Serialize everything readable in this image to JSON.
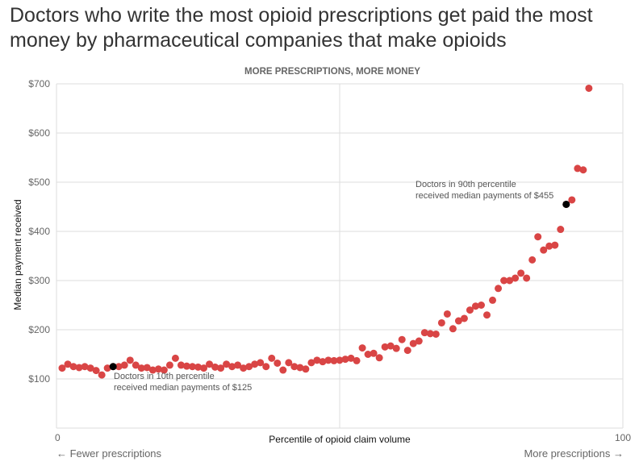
{
  "headline": "Doctors who write the most opioid prescriptions get paid the most money by pharmaceutical companies that make opioids",
  "chart_data": {
    "type": "scatter",
    "title": "MORE PRESCRIPTIONS, MORE MONEY",
    "xlabel": "Percentile of opioid claim volume",
    "ylabel": "Median payment received",
    "xlim": [
      0,
      100
    ],
    "ylim": [
      0,
      700
    ],
    "x_ticks": [
      "0",
      "100"
    ],
    "y_ticks": [
      "$100",
      "$200",
      "$300",
      "$400",
      "$500",
      "$600",
      "$700"
    ],
    "x_tick_values": [
      0,
      100
    ],
    "y_tick_values": [
      100,
      200,
      300,
      400,
      500,
      600,
      700
    ],
    "x_left_note": "← Fewer prescriptions",
    "x_right_note": "More prescriptions →",
    "grid": true,
    "series_color": "#d94545",
    "highlight_color": "#000000",
    "x": [
      1,
      2,
      3,
      4,
      5,
      6,
      7,
      8,
      9,
      10,
      11,
      12,
      13,
      14,
      15,
      16,
      17,
      18,
      19,
      20,
      21,
      22,
      23,
      24,
      25,
      26,
      27,
      28,
      29,
      30,
      31,
      32,
      33,
      34,
      35,
      36,
      37,
      38,
      39,
      40,
      41,
      42,
      43,
      44,
      45,
      46,
      47,
      48,
      49,
      50,
      51,
      52,
      53,
      54,
      55,
      56,
      57,
      58,
      59,
      60,
      61,
      62,
      63,
      64,
      65,
      66,
      67,
      68,
      69,
      70,
      71,
      72,
      73,
      74,
      75,
      76,
      77,
      78,
      79,
      80,
      81,
      82,
      83,
      84,
      85,
      86,
      87,
      88,
      89,
      90,
      91,
      92,
      93,
      94
    ],
    "y": [
      122,
      130,
      125,
      123,
      125,
      122,
      117,
      108,
      122,
      125,
      125,
      128,
      138,
      128,
      122,
      123,
      118,
      120,
      118,
      128,
      142,
      128,
      126,
      125,
      124,
      122,
      130,
      124,
      122,
      130,
      125,
      128,
      122,
      125,
      130,
      133,
      125,
      142,
      132,
      118,
      133,
      125,
      123,
      120,
      133,
      138,
      135,
      138,
      137,
      138,
      140,
      142,
      137,
      163,
      150,
      152,
      143,
      165,
      167,
      162,
      180,
      158,
      172,
      177,
      194,
      192,
      191,
      214,
      232,
      202,
      218,
      223,
      240,
      248,
      250,
      230,
      260,
      284,
      300,
      300,
      305,
      315,
      305,
      342,
      389,
      362,
      370,
      372,
      404,
      455,
      464,
      528,
      525,
      691
    ],
    "highlights": [
      {
        "x": 10,
        "y": 125,
        "label_line1": "Doctors in 10th percentile",
        "label_line2": "received median payments of $125"
      },
      {
        "x": 90,
        "y": 455,
        "label_line1": "Doctors in 90th percentile",
        "label_line2": "received median payments of $455"
      }
    ]
  }
}
